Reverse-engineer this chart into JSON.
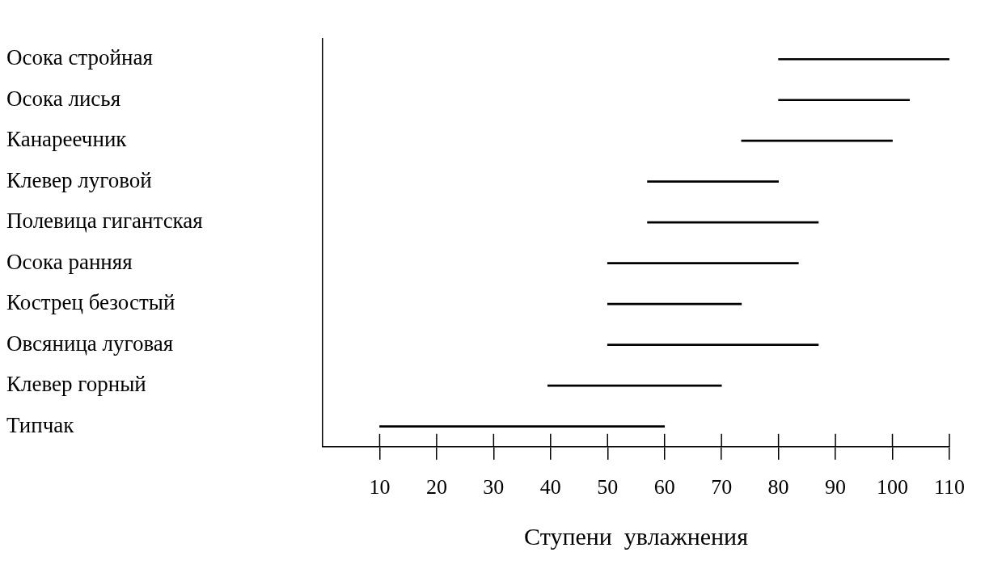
{
  "chart_data": {
    "type": "bar",
    "orientation": "horizontal",
    "categories": [
      "Осока стройная",
      "Осока лисья",
      "Канареечник",
      "Клевер луговой",
      "Полевица гигантская",
      "Осока ранняя",
      "Кострец безостый",
      "Овсяница луговая",
      "Клевер горный",
      "Типчак"
    ],
    "base": [
      80,
      80,
      73.5,
      57,
      57,
      50,
      50,
      50,
      39.5,
      10
    ],
    "values": [
      30,
      23,
      26.5,
      23,
      30,
      33.5,
      23.5,
      37,
      30.5,
      50
    ],
    "color": "#000000",
    "xlim": [
      0,
      110
    ],
    "xticks": [
      10,
      20,
      30,
      40,
      50,
      60,
      70,
      80,
      90,
      100,
      110
    ],
    "xlabel": "Ступени  увлажнения",
    "grid": false
  }
}
